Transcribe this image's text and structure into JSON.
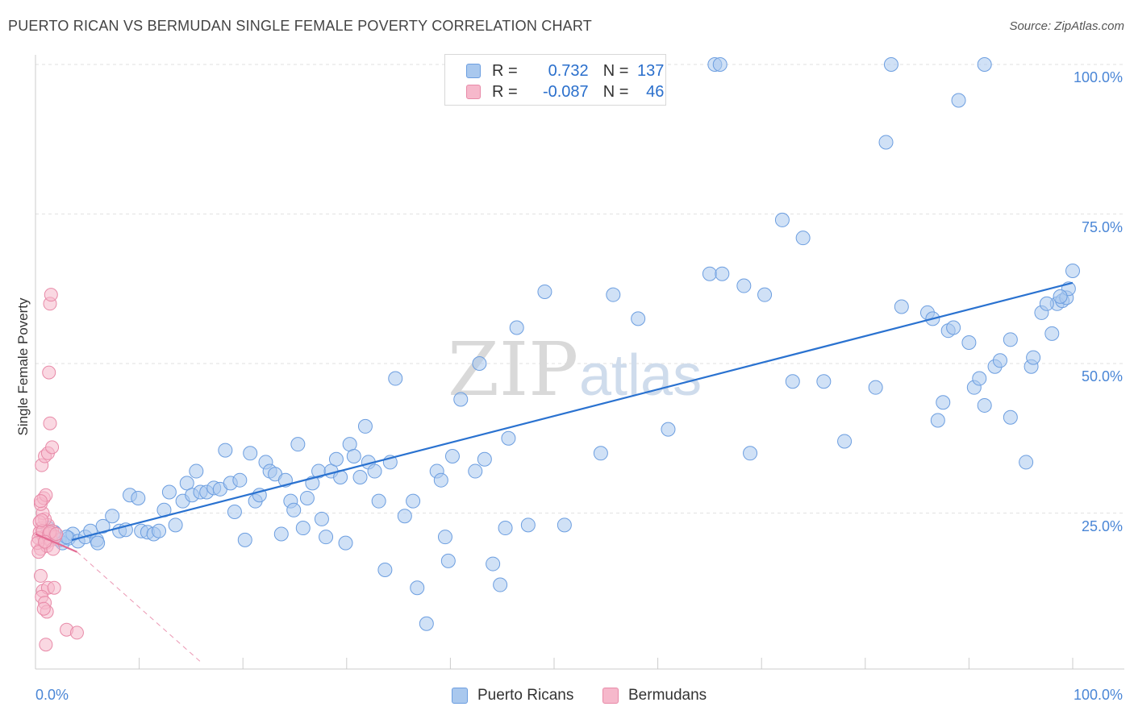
{
  "header": {
    "title": "PUERTO RICAN VS BERMUDAN SINGLE FEMALE POVERTY CORRELATION CHART",
    "source": "Source: ZipAtlas.com"
  },
  "watermark": {
    "zip": "ZIP",
    "atlas": "atlas"
  },
  "legend": {
    "series1": {
      "r_label": "R =",
      "r_value": "0.732",
      "n_label": "N =",
      "n_value": "137"
    },
    "series2": {
      "r_label": "R =",
      "r_value": "-0.087",
      "n_label": "N =",
      "n_value": "46"
    }
  },
  "bottom_legend": {
    "series1": "Puerto Ricans",
    "series2": "Bermudans"
  },
  "colors": {
    "blue_fill": "#a9c8ee",
    "blue_stroke": "#6c9ee0",
    "blue_line": "#2a72d0",
    "pink_fill": "#f6b8cb",
    "pink_stroke": "#e88aa8",
    "pink_line": "#e36b93"
  },
  "chart_data": {
    "type": "scatter",
    "title": "PUERTO RICAN VS BERMUDAN SINGLE FEMALE POVERTY CORRELATION CHART",
    "xlabel": "",
    "ylabel": "Single Female Poverty",
    "xlim": [
      0,
      100
    ],
    "ylim": [
      0,
      100
    ],
    "x_tick_labels": [
      "0.0%",
      "100.0%"
    ],
    "y_tick_labels": [
      "25.0%",
      "50.0%",
      "75.0%",
      "100.0%"
    ],
    "y_tick_values": [
      25,
      50,
      75,
      100
    ],
    "series": [
      {
        "name": "Puerto Ricans",
        "r": 0.732,
        "n": 137,
        "trend": {
          "x": [
            3.5,
            100
          ],
          "y": [
            20.5,
            63.5
          ]
        },
        "points": [
          [
            1.2,
            22.5
          ],
          [
            1.8,
            21.8
          ],
          [
            2.3,
            20.5
          ],
          [
            2.6,
            20.0
          ],
          [
            3.2,
            20.8
          ],
          [
            3.6,
            21.5
          ],
          [
            4.1,
            20.3
          ],
          [
            4.8,
            21.0
          ],
          [
            5.3,
            22.0
          ],
          [
            5.9,
            20.5
          ],
          [
            6.5,
            22.8
          ],
          [
            7.4,
            24.5
          ],
          [
            8.1,
            22.0
          ],
          [
            8.7,
            22.2
          ],
          [
            9.1,
            28.0
          ],
          [
            9.9,
            27.5
          ],
          [
            10.2,
            22.0
          ],
          [
            10.8,
            21.8
          ],
          [
            11.4,
            21.5
          ],
          [
            11.9,
            22.0
          ],
          [
            12.4,
            25.5
          ],
          [
            12.9,
            28.5
          ],
          [
            13.5,
            23.0
          ],
          [
            14.2,
            27.0
          ],
          [
            14.6,
            30.0
          ],
          [
            15.1,
            28.0
          ],
          [
            15.5,
            32.0
          ],
          [
            15.9,
            28.5
          ],
          [
            16.5,
            28.5
          ],
          [
            17.2,
            29.2
          ],
          [
            17.8,
            29.0
          ],
          [
            18.3,
            35.5
          ],
          [
            18.8,
            30.0
          ],
          [
            19.2,
            25.2
          ],
          [
            19.7,
            30.5
          ],
          [
            20.2,
            20.5
          ],
          [
            20.7,
            35.0
          ],
          [
            21.2,
            27.0
          ],
          [
            21.6,
            28.0
          ],
          [
            22.2,
            33.5
          ],
          [
            22.6,
            32.0
          ],
          [
            23.1,
            31.5
          ],
          [
            23.7,
            21.5
          ],
          [
            24.1,
            30.5
          ],
          [
            24.6,
            27.0
          ],
          [
            24.9,
            25.5
          ],
          [
            25.3,
            36.5
          ],
          [
            25.8,
            22.5
          ],
          [
            26.2,
            27.5
          ],
          [
            26.7,
            30.0
          ],
          [
            27.3,
            32.0
          ],
          [
            27.6,
            24.0
          ],
          [
            28.0,
            21.0
          ],
          [
            28.5,
            32.0
          ],
          [
            29.0,
            34.0
          ],
          [
            29.4,
            31.0
          ],
          [
            29.9,
            20.0
          ],
          [
            30.3,
            36.5
          ],
          [
            30.7,
            34.5
          ],
          [
            31.3,
            31.0
          ],
          [
            31.8,
            39.5
          ],
          [
            32.1,
            33.5
          ],
          [
            32.7,
            32.0
          ],
          [
            33.1,
            27.0
          ],
          [
            33.7,
            15.5
          ],
          [
            34.2,
            33.5
          ],
          [
            34.7,
            47.5
          ],
          [
            35.6,
            24.5
          ],
          [
            36.4,
            27.0
          ],
          [
            36.8,
            12.5
          ],
          [
            37.7,
            6.5
          ],
          [
            38.7,
            32.0
          ],
          [
            39.1,
            30.5
          ],
          [
            39.5,
            21.0
          ],
          [
            39.8,
            17.0
          ],
          [
            40.2,
            34.5
          ],
          [
            41.0,
            44.0
          ],
          [
            42.4,
            32.0
          ],
          [
            42.8,
            50.0
          ],
          [
            43.3,
            34.0
          ],
          [
            44.1,
            16.5
          ],
          [
            44.8,
            13.0
          ],
          [
            45.3,
            22.5
          ],
          [
            45.6,
            37.5
          ],
          [
            46.4,
            56.0
          ],
          [
            49.1,
            62.0
          ],
          [
            51.0,
            23.0
          ],
          [
            55.7,
            61.5
          ],
          [
            58.1,
            57.5
          ],
          [
            65.0,
            65.0
          ],
          [
            66.2,
            65.0
          ],
          [
            68.3,
            63.0
          ],
          [
            68.9,
            35.0
          ],
          [
            70.3,
            61.5
          ],
          [
            72.0,
            74.0
          ],
          [
            73.0,
            47.0
          ],
          [
            74.0,
            71.0
          ],
          [
            76.0,
            47.0
          ],
          [
            78.0,
            37.0
          ],
          [
            81.0,
            46.0
          ],
          [
            82.0,
            87.0
          ],
          [
            83.5,
            59.5
          ],
          [
            87.0,
            40.5
          ],
          [
            86.0,
            58.5
          ],
          [
            86.5,
            57.5
          ],
          [
            87.5,
            43.5
          ],
          [
            88.0,
            55.5
          ],
          [
            88.5,
            56.0
          ],
          [
            89.0,
            94.0
          ],
          [
            90.0,
            53.5
          ],
          [
            90.5,
            46.0
          ],
          [
            91.0,
            47.5
          ],
          [
            91.5,
            43.0
          ],
          [
            92.5,
            49.5
          ],
          [
            93.0,
            50.5
          ],
          [
            94.0,
            41.0
          ],
          [
            94.0,
            54.0
          ],
          [
            95.5,
            33.5
          ],
          [
            96.0,
            49.5
          ],
          [
            96.2,
            51.0
          ],
          [
            97.0,
            58.5
          ],
          [
            98.0,
            55.0
          ],
          [
            98.5,
            60.0
          ],
          [
            99.0,
            60.5
          ],
          [
            99.4,
            61.0
          ],
          [
            99.6,
            62.5
          ],
          [
            100.0,
            65.5
          ],
          [
            65.5,
            100
          ],
          [
            66.0,
            100
          ],
          [
            82.5,
            100
          ],
          [
            91.5,
            100
          ],
          [
            97.5,
            60.0
          ],
          [
            98.8,
            61.2
          ],
          [
            47.5,
            23.0
          ],
          [
            54.5,
            35.0
          ],
          [
            61.0,
            39.0
          ],
          [
            3.0,
            21.0
          ],
          [
            6.0,
            20.0
          ]
        ]
      },
      {
        "name": "Bermudans",
        "r": -0.087,
        "n": 46,
        "trend": {
          "x": [
            0,
            4
          ],
          "y": [
            21.5,
            18.5
          ],
          "dashed_to": {
            "x": 16,
            "y": 0
          }
        },
        "points": [
          [
            0.6,
            22.5
          ],
          [
            0.8,
            21.0
          ],
          [
            1.0,
            20.0
          ],
          [
            0.5,
            19.0
          ],
          [
            1.2,
            23.0
          ],
          [
            0.9,
            24.0
          ],
          [
            0.4,
            21.8
          ],
          [
            1.5,
            20.5
          ],
          [
            0.7,
            25.0
          ],
          [
            1.1,
            19.5
          ],
          [
            0.3,
            20.8
          ],
          [
            1.6,
            22.0
          ],
          [
            0.5,
            26.5
          ],
          [
            0.8,
            27.5
          ],
          [
            1.0,
            28.0
          ],
          [
            0.6,
            33.0
          ],
          [
            0.9,
            34.5
          ],
          [
            1.2,
            35.0
          ],
          [
            1.6,
            36.0
          ],
          [
            1.4,
            40.0
          ],
          [
            1.3,
            48.5
          ],
          [
            1.4,
            60.0
          ],
          [
            1.5,
            61.5
          ],
          [
            0.5,
            14.5
          ],
          [
            0.7,
            12.0
          ],
          [
            1.2,
            12.5
          ],
          [
            1.8,
            12.5
          ],
          [
            0.6,
            11.0
          ],
          [
            0.9,
            10.0
          ],
          [
            1.1,
            8.5
          ],
          [
            0.8,
            9.0
          ],
          [
            3.0,
            5.5
          ],
          [
            4.0,
            5.0
          ],
          [
            1.0,
            3.0
          ],
          [
            0.4,
            23.5
          ],
          [
            0.7,
            22.0
          ],
          [
            1.3,
            21.5
          ],
          [
            1.9,
            21.0
          ],
          [
            0.2,
            20.0
          ],
          [
            0.3,
            18.5
          ],
          [
            1.7,
            19.0
          ],
          [
            0.5,
            27.0
          ],
          [
            1.4,
            21.8
          ],
          [
            0.9,
            20.2
          ],
          [
            2.0,
            21.5
          ],
          [
            0.6,
            23.8
          ]
        ]
      }
    ]
  }
}
